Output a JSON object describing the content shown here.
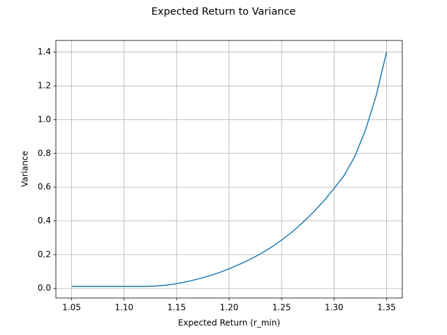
{
  "chart_data": {
    "type": "line",
    "title": "Expected Return to Variance",
    "x_label": "Expected Return (r_min)",
    "y_label": "Variance",
    "x": [
      1.05,
      1.06,
      1.07,
      1.08,
      1.09,
      1.1,
      1.11,
      1.12,
      1.13,
      1.14,
      1.15,
      1.16,
      1.17,
      1.18,
      1.19,
      1.2,
      1.21,
      1.22,
      1.23,
      1.24,
      1.25,
      1.26,
      1.27,
      1.28,
      1.29,
      1.3,
      1.31,
      1.32,
      1.33,
      1.34,
      1.35
    ],
    "values": [
      0.012,
      0.012,
      0.012,
      0.012,
      0.012,
      0.012,
      0.012,
      0.012,
      0.014,
      0.019,
      0.028,
      0.04,
      0.055,
      0.072,
      0.092,
      0.116,
      0.143,
      0.172,
      0.205,
      0.243,
      0.286,
      0.334,
      0.389,
      0.45,
      0.517,
      0.592,
      0.673,
      0.785,
      0.94,
      1.14,
      1.4
    ],
    "color": "#1f77b4",
    "xlim": [
      1.035,
      1.365
    ],
    "xticks": [
      1.05,
      {
        "value": 1.1,
        "label": "1.10"
      },
      1.15,
      {
        "value": 1.2,
        "label": "1.20"
      },
      1.25,
      {
        "value": 1.3,
        "label": "1.30"
      },
      1.35
    ],
    "ylim": [
      -0.057,
      1.469
    ],
    "yticks": [
      {
        "value": 0,
        "label": "0.0"
      },
      0.2,
      0.4,
      0.6,
      0.8,
      {
        "value": 1,
        "label": "1.0"
      },
      1.2,
      1.4
    ],
    "grid": true
  }
}
